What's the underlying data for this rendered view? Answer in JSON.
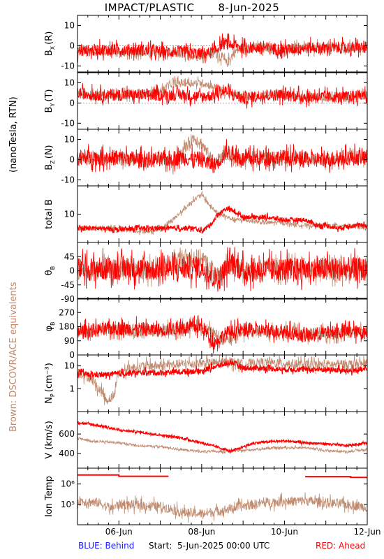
{
  "header": {
    "mission": "IMPACT/PLASTIC",
    "date": "8-Jun-2025"
  },
  "side_labels": {
    "units": "(nanoTesla, RTN)",
    "brown_note": "Brown: DSCOVR/ACE equivalents"
  },
  "footer": {
    "behind": "BLUE: Behind",
    "start": "Start:  5-Jun-2025 00:00 UTC",
    "ahead": "RED: Ahead"
  },
  "colors": {
    "ahead": "#ff0000",
    "brown": "#c08a6e",
    "behind": "#1a1aff",
    "axis": "#000000"
  },
  "chart_data": {
    "type": "line",
    "x_unit": "days since 5-Jun-2025 00:00 UTC",
    "x_range_days": [
      0,
      7
    ],
    "x_tick_labels": [
      {
        "day": 1,
        "label": "06-Jun"
      },
      {
        "day": 3,
        "label": "08-Jun"
      },
      {
        "day": 5,
        "label": "10-Jun"
      },
      {
        "day": 7,
        "label": "12-Jun"
      }
    ],
    "minor_ticks_per_day": 4,
    "panels": [
      {
        "id": "bx",
        "ylabel": "B",
        "ysub": "X",
        "yunit": "(R)",
        "ylim": [
          -13,
          15
        ],
        "yticks": [
          -10,
          0,
          10
        ],
        "zero_line": true,
        "series": [
          {
            "name": "ahead",
            "x": [
              0,
              0.5,
              1,
              1.5,
              2,
              2.5,
              2.9,
              3.1,
              3.3,
              3.5,
              3.6,
              3.8,
              4,
              4.5,
              5,
              5.5,
              6,
              6.5,
              7
            ],
            "y": [
              -3,
              -2,
              -2,
              -2,
              -3,
              -3,
              -4,
              -4,
              -3,
              1,
              1,
              0,
              -1,
              -1,
              -2,
              -1,
              -1,
              -1,
              -1
            ],
            "noise": 3
          },
          {
            "name": "brown",
            "x": [
              0,
              0.5,
              1,
              1.5,
              2,
              2.5,
              2.9,
              3.1,
              3.3,
              3.5,
              3.6,
              3.8,
              4,
              4.5,
              5,
              5.5,
              6,
              6.5,
              7
            ],
            "y": [
              -2,
              -3,
              -3,
              -3,
              -4,
              -4,
              -5,
              -4,
              -3,
              -6,
              -9,
              -3,
              -1,
              -1,
              -2,
              -1,
              -1,
              -1,
              -1
            ],
            "noise": 2.5
          }
        ]
      },
      {
        "id": "by",
        "ylabel": "B",
        "ysub": "Y",
        "yunit": "(T)",
        "ylim": [
          -13,
          15
        ],
        "yticks": [
          -10,
          0,
          10
        ],
        "zero_line": true,
        "series": [
          {
            "name": "ahead",
            "x": [
              0,
              0.5,
              1,
              1.5,
              2,
              2.5,
              3,
              3.3,
              3.6,
              4,
              4.5,
              5,
              5.5,
              6,
              6.5,
              7
            ],
            "y": [
              5,
              4,
              4,
              4,
              4,
              4,
              3,
              4,
              6,
              2,
              4,
              4,
              3,
              3,
              3,
              4
            ],
            "noise": 3
          },
          {
            "name": "brown",
            "x": [
              0,
              0.5,
              1,
              1.5,
              2,
              2.3,
              2.6,
              3,
              3.3,
              3.6,
              4,
              4.5,
              5,
              5.5,
              6,
              6.5,
              7
            ],
            "y": [
              4,
              4,
              4,
              4,
              6,
              10,
              10,
              10,
              8,
              5,
              3,
              4,
              4,
              3,
              3,
              3,
              4
            ],
            "noise": 2
          }
        ]
      },
      {
        "id": "bz",
        "ylabel": "B",
        "ysub": "Z",
        "yunit": "(N)",
        "ylim": [
          -13,
          15
        ],
        "yticks": [
          -10,
          0,
          10
        ],
        "zero_line": true,
        "series": [
          {
            "name": "ahead",
            "x": [
              0,
              0.5,
              1,
              1.5,
              2,
              2.5,
              3,
              3.3,
              3.6,
              4,
              4.5,
              5,
              5.5,
              6,
              6.5,
              7
            ],
            "y": [
              1,
              1,
              1,
              0,
              0,
              1,
              0,
              -3,
              4,
              0,
              1,
              1,
              0,
              0,
              1,
              1
            ],
            "noise": 4
          },
          {
            "name": "brown",
            "x": [
              0,
              0.5,
              1,
              1.5,
              2,
              2.3,
              2.6,
              2.8,
              3.0,
              3.3,
              3.6,
              4,
              4.5,
              5,
              5.5,
              6,
              6.5,
              7
            ],
            "y": [
              0,
              0,
              0,
              0,
              0,
              -3,
              6,
              11,
              8,
              -2,
              3,
              0,
              1,
              1,
              0,
              0,
              1,
              1
            ],
            "noise": 3
          }
        ]
      },
      {
        "id": "btot",
        "ylabel": "total B",
        "ysub": "",
        "yunit": "",
        "ylim": [
          0,
          20
        ],
        "yticks": [
          10
        ],
        "zero_line": false,
        "series": [
          {
            "name": "ahead",
            "x": [
              0,
              0.5,
              1,
              1.5,
              2,
              2.5,
              2.8,
              3,
              3.2,
              3.4,
              3.6,
              3.8,
              4,
              4.5,
              5,
              5.5,
              5.8,
              6,
              6.3,
              6.6,
              7
            ],
            "y": [
              5,
              5,
              4.5,
              5,
              5,
              5,
              5,
              4,
              6,
              10,
              12,
              11,
              9,
              9,
              8,
              8,
              6,
              6,
              5,
              6,
              6
            ],
            "noise": 0.8
          },
          {
            "name": "brown",
            "x": [
              0,
              0.5,
              1,
              1.5,
              1.8,
              2,
              2.3,
              2.6,
              2.8,
              3,
              3.2,
              3.4,
              3.6,
              3.8,
              4,
              4.5,
              5,
              5.5,
              6,
              6.5,
              7
            ],
            "y": [
              5,
              5,
              5,
              4,
              4,
              5,
              8,
              12,
              15,
              17,
              13,
              10,
              9,
              8,
              8,
              7,
              7,
              6,
              6,
              6,
              5
            ],
            "noise": 0.8
          }
        ]
      },
      {
        "id": "theta",
        "ylabel": "θ",
        "ysub": "B",
        "yunit": "",
        "ylim": [
          -90,
          90
        ],
        "yticks": [
          -90,
          -45,
          0,
          45
        ],
        "zero_line": true,
        "series": [
          {
            "name": "ahead",
            "x": [
              0,
              1,
              2,
              3,
              3.4,
              3.7,
              4,
              5,
              6,
              7
            ],
            "y": [
              5,
              8,
              5,
              10,
              -30,
              30,
              0,
              5,
              5,
              5
            ],
            "noise": 38
          },
          {
            "name": "brown",
            "x": [
              0,
              1,
              2,
              2.5,
              3,
              3.4,
              3.7,
              4,
              5,
              6,
              7
            ],
            "y": [
              0,
              5,
              0,
              40,
              40,
              -20,
              20,
              0,
              5,
              0,
              5
            ],
            "noise": 30
          }
        ]
      },
      {
        "id": "phi",
        "ylabel": "φ",
        "ysub": "B",
        "yunit": "",
        "ylim": [
          0,
          360
        ],
        "yticks": [
          0,
          90,
          180,
          270
        ],
        "zero_line": false,
        "series": [
          {
            "name": "ahead",
            "x": [
              0,
              1,
              2,
              3,
              3.3,
              3.6,
              4,
              5,
              5.5,
              6,
              6.5,
              7
            ],
            "y": [
              150,
              170,
              160,
              180,
              80,
              140,
              160,
              150,
              120,
              140,
              150,
              140
            ],
            "noise": 45
          },
          {
            "name": "brown",
            "x": [
              0,
              1,
              2,
              2.5,
              3,
              3.5,
              4,
              5,
              5.5,
              6,
              7
            ],
            "y": [
              150,
              160,
              150,
              170,
              180,
              100,
              150,
              150,
              130,
              140,
              150
            ],
            "noise": 40
          }
        ]
      },
      {
        "id": "np",
        "ylabel": "N",
        "ysub": "P",
        "yunit": "(cm⁻³)",
        "ylim": [
          0.1,
          30
        ],
        "log": true,
        "ytick_values": [
          1,
          10
        ],
        "yticks": [
          "1",
          "10"
        ],
        "zero_line": false,
        "series": [
          {
            "name": "ahead",
            "x": [
              0,
              0.3,
              0.6,
              1,
              1.5,
              2,
              2.5,
              3,
              3.5,
              3.7,
              4,
              4.5,
              5,
              5.5,
              6,
              6.5,
              7
            ],
            "y": [
              5,
              4,
              4,
              4.5,
              5,
              5,
              5.5,
              6,
              11,
              15,
              8,
              8,
              7,
              7,
              7,
              6,
              7
            ],
            "noise_log": 0.04
          },
          {
            "name": "brown",
            "x": [
              0,
              0.3,
              0.5,
              0.7,
              0.9,
              1,
              1.3,
              1.6,
              2,
              2.5,
              3,
              3.5,
              3.7,
              4,
              4.5,
              5,
              5.5,
              6,
              6.5,
              7
            ],
            "y": [
              5,
              3,
              1,
              0.3,
              0.5,
              5,
              8,
              10,
              10,
              12,
              13,
              14,
              15,
              12,
              14,
              13,
              11,
              11,
              12,
              12
            ],
            "noise_log": 0.07
          }
        ]
      },
      {
        "id": "v",
        "ylabel": "V (km/s)",
        "ysub": "",
        "yunit": "",
        "ylim": [
          250,
          830
        ],
        "yticks": [
          400,
          600
        ],
        "zero_line": false,
        "series": [
          {
            "name": "ahead",
            "x": [
              0,
              0.3,
              0.6,
              1,
              1.5,
              2,
              2.5,
              3,
              3.5,
              3.7,
              4,
              4.3,
              4.6,
              5,
              5.5,
              6,
              6.5,
              7
            ],
            "y": [
              720,
              700,
              680,
              640,
              620,
              590,
              560,
              510,
              450,
              420,
              470,
              510,
              520,
              530,
              510,
              500,
              480,
              510
            ],
            "noise": 12
          },
          {
            "name": "brown",
            "x": [
              0,
              0.3,
              0.6,
              1,
              1.5,
              2,
              2.5,
              3,
              3.5,
              4,
              4.5,
              5,
              5.5,
              6,
              6.5,
              7
            ],
            "y": [
              560,
              530,
              520,
              510,
              480,
              470,
              440,
              420,
              420,
              430,
              450,
              460,
              460,
              430,
              420,
              440
            ],
            "noise": 12
          }
        ]
      },
      {
        "id": "temp",
        "ylabel": "Ion Temp",
        "ysub": "",
        "yunit": "",
        "ylim": [
          10000,
          6000000
        ],
        "log": true,
        "ytick_values": [
          100000,
          1000000
        ],
        "yticks": [
          "10⁵",
          "10⁶"
        ],
        "zero_line": false,
        "series": [
          {
            "name": "ahead",
            "x": [
              0,
              1,
              1,
              2.2
            ],
            "y": [
              2800000,
              2800000,
              2400000,
              2400000
            ],
            "noise_log": 0,
            "segments": [
              [
                0,
                1
              ],
              [
                1,
                2.2
              ]
            ]
          },
          {
            "name": "ahead",
            "x": [
              5.5,
              6.6,
              6.6,
              7
            ],
            "y": [
              2300000,
              2300000,
              2100000,
              2100000
            ],
            "noise_log": 0
          },
          {
            "name": "brown",
            "x": [
              0,
              0.5,
              0.8,
              1,
              1.5,
              2,
              2.5,
              3,
              3.5,
              4,
              4.5,
              5,
              5.5,
              6,
              6.5,
              7
            ],
            "y": [
              150000,
              120000,
              60000,
              100000,
              90000,
              80000,
              40000,
              35000,
              50000,
              80000,
              120000,
              140000,
              150000,
              120000,
              100000,
              70000
            ],
            "noise_log": 0.08
          }
        ]
      }
    ]
  }
}
